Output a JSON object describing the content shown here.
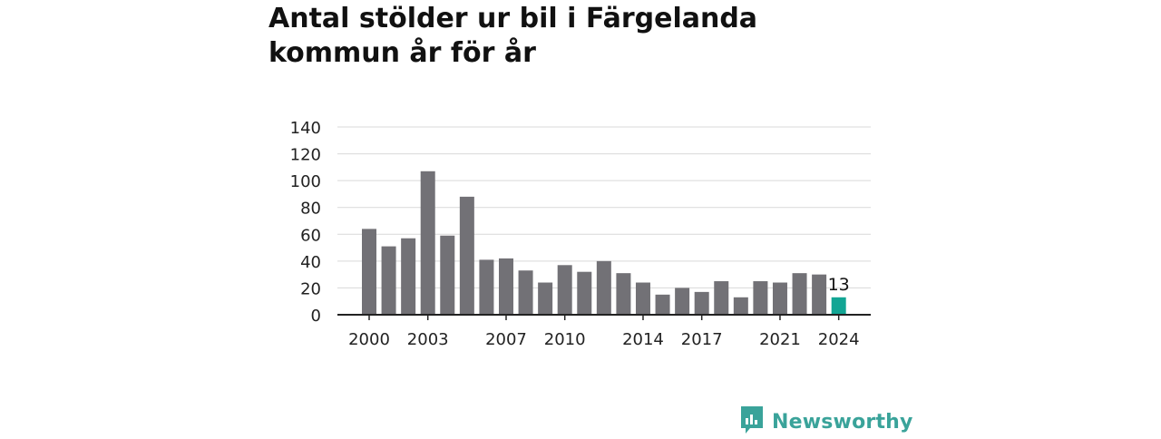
{
  "title": "Antal stölder ur bil i Färgelanda kommun år för år",
  "logo": {
    "name": "Newsworthy",
    "icon": "newsworthy-logo-icon",
    "color": "#3aa39a"
  },
  "chart_data": {
    "type": "bar",
    "title": "Antal stölder ur bil i Färgelanda kommun år för år",
    "xlabel": "",
    "ylabel": "",
    "categories": [
      2000,
      2001,
      2002,
      2003,
      2004,
      2005,
      2006,
      2007,
      2008,
      2009,
      2010,
      2011,
      2012,
      2013,
      2014,
      2015,
      2016,
      2017,
      2018,
      2019,
      2020,
      2021,
      2022,
      2023,
      2024
    ],
    "values": [
      64,
      51,
      57,
      107,
      59,
      88,
      41,
      42,
      33,
      24,
      37,
      32,
      40,
      31,
      24,
      15,
      20,
      17,
      25,
      13,
      25,
      24,
      31,
      30,
      13
    ],
    "x_tick_labels": [
      "2000",
      "2003",
      "2007",
      "2010",
      "2014",
      "2017",
      "2021",
      "2024"
    ],
    "y_ticks": [
      0,
      20,
      40,
      60,
      80,
      100,
      120,
      140
    ],
    "ylim": [
      0,
      140
    ],
    "grid": true,
    "bar_color": "#727176",
    "highlight_color": "#12a594",
    "highlight_category": 2024,
    "data_labels": [
      {
        "category": 2024,
        "text": "13"
      }
    ]
  }
}
